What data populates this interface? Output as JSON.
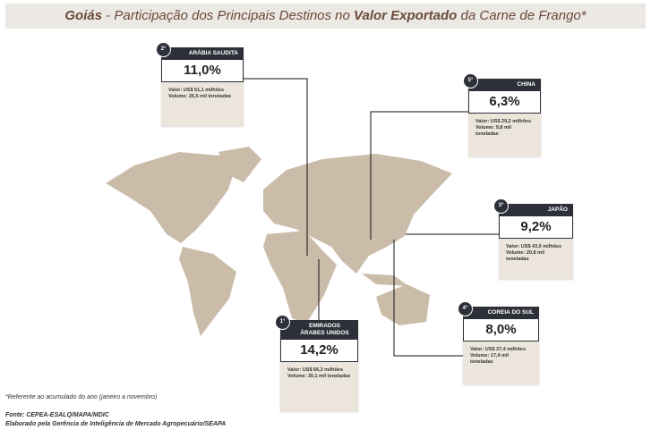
{
  "header": {
    "title": [
      "Goiás",
      " - Participação dos Principais Destinos no ",
      "Valor Exportado",
      " da Carne de Frango*"
    ]
  },
  "cards": [
    {
      "rank": "2°",
      "name": "ARÁBIA SAUDITA",
      "share": "11,0%",
      "value": "Valor: US$ 51,1 milhões",
      "volume": "Volume: 25,5 mil toneladas"
    },
    {
      "rank": "5°",
      "name": "CHINA",
      "share": "6,3%",
      "value": "Valor: US$ 29,2 milhões",
      "volume": "Volume: 9,8 mil toneladas"
    },
    {
      "rank": "3°",
      "name": "JAPÃO",
      "share": "9,2%",
      "value": "Valor: US$ 43,0 milhões",
      "volume": "Volume: 20,8 mil toneladas"
    },
    {
      "rank": "4°",
      "name": "COREIA DO SUL",
      "share": "8,0%",
      "value": "Valor: US$ 37,4 milhões",
      "volume": "Volume: 17,4 mil toneladas"
    },
    {
      "rank": "1°",
      "name": "EMIRADOS ÁRABES UNIDOS",
      "share": "14,2%",
      "value": "Valor: US$ 66,3 milhões",
      "volume": "Volume: 30,1 mil toneladas"
    }
  ],
  "footnote": "*Referente ao acumulado do ano (janeiro a novembro)",
  "sources": [
    "Fonte: CEPEA-ESALQ/MAPA/MDIC",
    "Elaborado pela Gerência de Inteligência de Mercado Agropecuário/SEAPA"
  ]
}
